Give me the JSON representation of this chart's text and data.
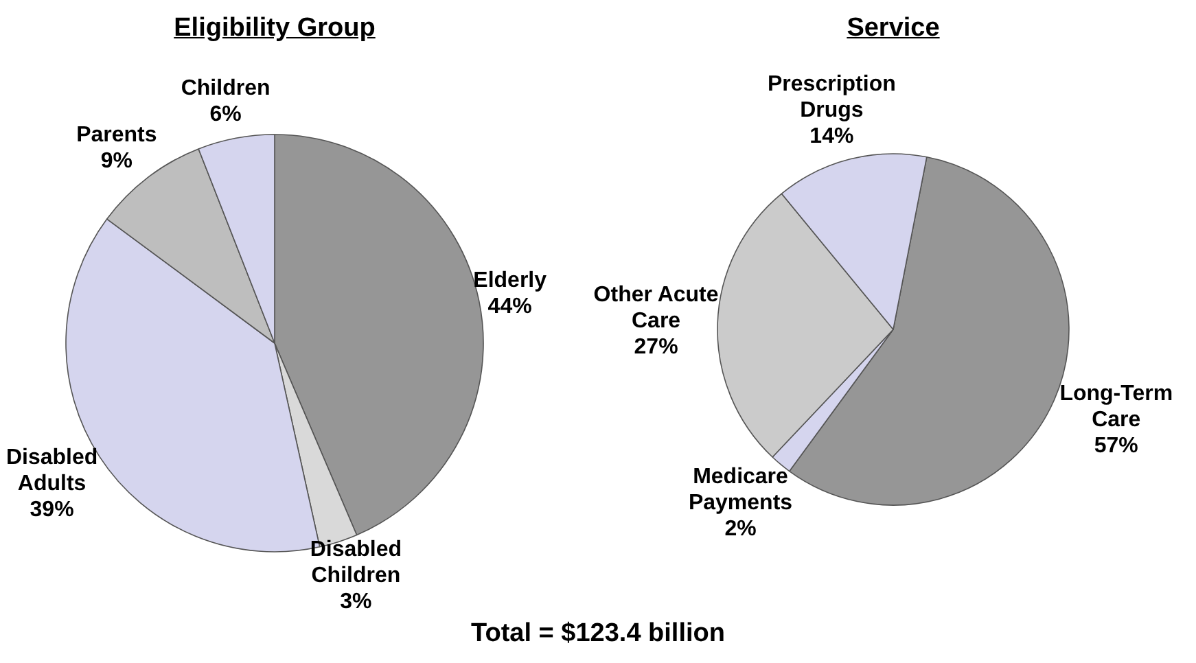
{
  "chart_data": [
    {
      "type": "pie",
      "title": "Eligibility Group",
      "categories": [
        "Elderly",
        "Disabled Children",
        "Disabled Adults",
        "Parents",
        "Children"
      ],
      "values": [
        44,
        3,
        39,
        9,
        6
      ],
      "colors": [
        "#969696",
        "#d9d9d9",
        "#d5d5ee",
        "#bebebe",
        "#d5d5ee"
      ],
      "value_labels": [
        "44%",
        "3%",
        "39%",
        "9%",
        "6%"
      ],
      "legend": false,
      "annotations": [
        "Total = $123.4 billion"
      ]
    },
    {
      "type": "pie",
      "title": "Service",
      "categories": [
        "Long-Term Care",
        "Medicare Payments",
        "Other Acute Care",
        "Prescription Drugs"
      ],
      "values": [
        57,
        2,
        27,
        14
      ],
      "colors": [
        "#969696",
        "#d5d5ee",
        "#cbcbcb",
        "#d5d5ee"
      ],
      "value_labels": [
        "57%",
        "2%",
        "27%",
        "14%"
      ],
      "legend": false
    }
  ]
}
